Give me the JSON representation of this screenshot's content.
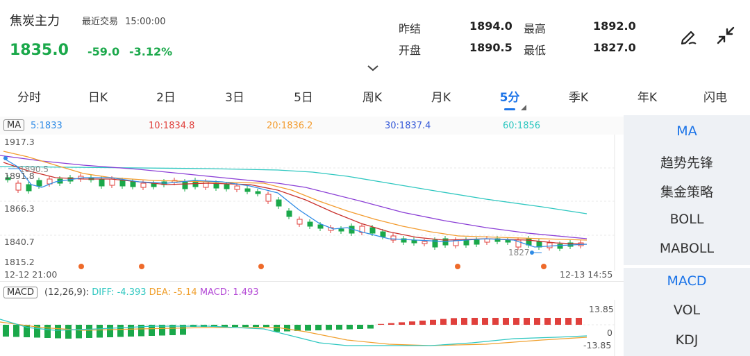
{
  "header": {
    "name": "焦炭主力",
    "subtitle": "最近交易",
    "time": "15:00:00",
    "price": "1835.0",
    "change": "-59.0",
    "change_pct": "-3.12%",
    "stats": [
      {
        "label": "昨结",
        "value": "1894.0"
      },
      {
        "label": "最高",
        "value": "1892.0"
      },
      {
        "label": "开盘",
        "value": "1890.5"
      },
      {
        "label": "最低",
        "value": "1827.0"
      }
    ],
    "icons": [
      "draw-icon",
      "collapse-icon",
      "chevron-down-icon"
    ]
  },
  "tabs": [
    "分时",
    "日K",
    "2日",
    "3日",
    "5日",
    "周K",
    "月K",
    "5分",
    "季K",
    "年K",
    "闪电"
  ],
  "active_tab": "5分",
  "ma_bar": {
    "tag": "MA",
    "items": [
      {
        "label": "5:1833",
        "color": "#2f8be6"
      },
      {
        "label": "10:1834.8",
        "color": "#e0403c"
      },
      {
        "label": "20:1836.2",
        "color": "#f39c2f"
      },
      {
        "label": "30:1837.4",
        "color": "#3559d8"
      },
      {
        "label": "60:1856",
        "color": "#2ec7c0"
      }
    ]
  },
  "price_axis": [
    "1917.3",
    "1891.8",
    "1866.3",
    "1840.7",
    "1815.2"
  ],
  "annotations": {
    "high": "1890.5",
    "low": "1827"
  },
  "time_axis": {
    "start": "12-12 21:00",
    "end": "12-13 14:55"
  },
  "macd": {
    "tag": "MACD",
    "params": "(12,26,9):",
    "diff": "DIFF: -4.393",
    "dea": "DEA: -5.14",
    "macd": "MACD: 1.493",
    "axis_top": "13.85",
    "axis_mid": "0",
    "axis_bottom": "-13.85",
    "colors": {
      "diff": "#2ec7c0",
      "dea": "#f0a02e",
      "macd": "#b44ad6"
    }
  },
  "side_panel": {
    "main": [
      "MA",
      "趋势先锋",
      "集金策略",
      "BOLL",
      "MABOLL"
    ],
    "sub": [
      "MACD",
      "VOL",
      "KDJ"
    ],
    "active_main": "MA",
    "active_sub": "MACD"
  },
  "colors": {
    "up": "#e0403c",
    "down": "#1aa84a",
    "accent": "#1a73e8"
  }
}
